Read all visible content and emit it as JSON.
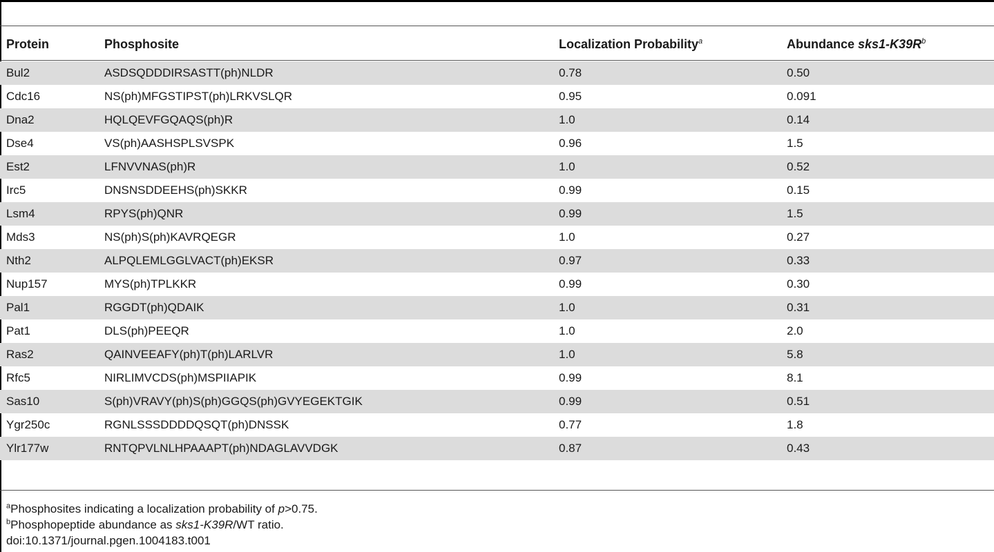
{
  "table": {
    "headers": {
      "protein": "Protein",
      "phosphosite": "Phosphosite",
      "localization": "Localization Probability",
      "localization_sup": "a",
      "abundance": "Abundance ",
      "abundance_strain": "sks1-K39R",
      "abundance_sup": "b"
    },
    "rows": [
      {
        "protein": "Bul2",
        "site": "ASDSQDDDIRSASTT(ph)NLDR",
        "prob": "0.78",
        "abund": "0.50"
      },
      {
        "protein": "Cdc16",
        "site": "NS(ph)MFGSTIPST(ph)LRKVSLQR",
        "prob": "0.95",
        "abund": "0.091"
      },
      {
        "protein": "Dna2",
        "site": "HQLQEVFGQAQS(ph)R",
        "prob": "1.0",
        "abund": "0.14"
      },
      {
        "protein": "Dse4",
        "site": "VS(ph)AASHSPLSVSPK",
        "prob": "0.96",
        "abund": "1.5"
      },
      {
        "protein": "Est2",
        "site": "LFNVVNAS(ph)R",
        "prob": "1.0",
        "abund": "0.52"
      },
      {
        "protein": "Irc5",
        "site": "DNSNSDDEEHS(ph)SKKR",
        "prob": "0.99",
        "abund": "0.15"
      },
      {
        "protein": "Lsm4",
        "site": "RPYS(ph)QNR",
        "prob": "0.99",
        "abund": "1.5"
      },
      {
        "protein": "Mds3",
        "site": "NS(ph)S(ph)KAVRQEGR",
        "prob": "1.0",
        "abund": "0.27"
      },
      {
        "protein": "Nth2",
        "site": "ALPQLEMLGGLVACT(ph)EKSR",
        "prob": "0.97",
        "abund": "0.33"
      },
      {
        "protein": "Nup157",
        "site": "MYS(ph)TPLKKR",
        "prob": "0.99",
        "abund": "0.30"
      },
      {
        "protein": "Pal1",
        "site": "RGGDT(ph)QDAIK",
        "prob": "1.0",
        "abund": "0.31"
      },
      {
        "protein": "Pat1",
        "site": "DLS(ph)PEEQR",
        "prob": "1.0",
        "abund": "2.0"
      },
      {
        "protein": "Ras2",
        "site": "QAINVEEAFY(ph)T(ph)LARLVR",
        "prob": "1.0",
        "abund": "5.8"
      },
      {
        "protein": "Rfc5",
        "site": "NIRLIMVCDS(ph)MSPIIAPIK",
        "prob": "0.99",
        "abund": "8.1"
      },
      {
        "protein": "Sas10",
        "site": "S(ph)VRAVY(ph)S(ph)GGQS(ph)GVYEGEKTGIK",
        "prob": "0.99",
        "abund": "0.51"
      },
      {
        "protein": "Ygr250c",
        "site": "RGNLSSSDDDDQSQT(ph)DNSSK",
        "prob": "0.77",
        "abund": "1.8"
      },
      {
        "protein": "Ylr177w",
        "site": "RNTQPVLNLHPAAAPT(ph)NDAGLAVVDGK",
        "prob": "0.87",
        "abund": "0.43"
      }
    ]
  },
  "footnotes": {
    "a_marker": "a",
    "a_text": "Phosphosites indicating a localization probability of ",
    "a_var": "p",
    "a_rel": ">0.75.",
    "b_marker": "b",
    "b_text": "Phosphopeptide abundance as ",
    "b_strain": "sks1-K39R",
    "b_rest": "/WT ratio.",
    "doi": "doi:10.1371/journal.pgen.1004183.t001"
  }
}
